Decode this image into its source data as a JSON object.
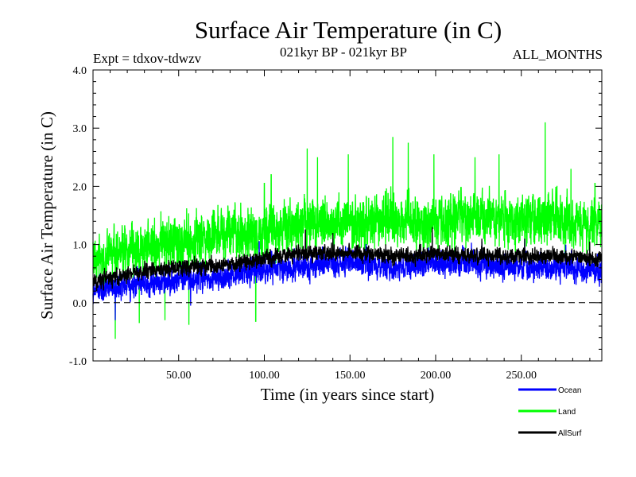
{
  "chart_data": {
    "type": "line",
    "title": "Surface Air Temperature (in C)",
    "subtitle_left": "Expt = tdxov-tdwzv",
    "subtitle_center": "021kyr BP - 021kyr BP",
    "subtitle_right": "ALL_MONTHS",
    "xlabel": "Time (in years since start)",
    "ylabel": "Surface Air Temperature (in C)",
    "xlim": [
      0,
      297
    ],
    "ylim": [
      -1.0,
      4.0
    ],
    "x_ticks": [
      50,
      100,
      150,
      200,
      250
    ],
    "x_tick_labels": [
      "50.00",
      "100.00",
      "150.00",
      "200.00",
      "250.00"
    ],
    "y_ticks": [
      -1.0,
      0.0,
      1.0,
      2.0,
      3.0,
      4.0
    ],
    "y_tick_labels": [
      "-1.0",
      "0.0",
      "1.0",
      "2.0",
      "3.0",
      "4.0"
    ],
    "reference_line": 0.0,
    "legend_position": "bottom-right",
    "x_step": 0.0833,
    "series": [
      {
        "name": "Land",
        "color": "#00ff00",
        "anchors_x": [
          0,
          15,
          30,
          50,
          75,
          100,
          125,
          150,
          175,
          200,
          225,
          250,
          275,
          297
        ],
        "anchors_y": [
          0.75,
          0.85,
          0.95,
          1.05,
          1.15,
          1.25,
          1.35,
          1.35,
          1.45,
          1.35,
          1.45,
          1.4,
          1.4,
          1.35
        ],
        "noise": 0.38,
        "peaks": [
          [
            13,
            -0.62
          ],
          [
            27,
            -0.35
          ],
          [
            42,
            -0.3
          ],
          [
            56,
            -0.38
          ],
          [
            95,
            -0.32
          ],
          [
            100,
            2.05
          ],
          [
            104,
            2.2
          ],
          [
            125,
            2.65
          ],
          [
            131,
            2.5
          ],
          [
            149,
            2.55
          ],
          [
            175,
            2.85
          ],
          [
            184,
            2.75
          ],
          [
            199,
            2.55
          ],
          [
            223,
            2.5
          ],
          [
            237,
            2.55
          ],
          [
            264,
            3.1
          ],
          [
            279,
            2.3
          ],
          [
            293,
            2.05
          ]
        ]
      },
      {
        "name": "Ocean",
        "color": "#0000ff",
        "anchors_x": [
          0,
          15,
          30,
          50,
          75,
          100,
          125,
          150,
          175,
          200,
          225,
          250,
          275,
          297
        ],
        "anchors_y": [
          0.2,
          0.3,
          0.35,
          0.4,
          0.45,
          0.55,
          0.65,
          0.7,
          0.6,
          0.7,
          0.65,
          0.6,
          0.6,
          0.55
        ],
        "noise": 0.2,
        "peaks": [
          [
            13,
            -0.3
          ],
          [
            57,
            -0.05
          ],
          [
            97,
            1.05
          ],
          [
            124,
            1.05
          ],
          [
            140,
            1.1
          ],
          [
            198,
            1.2
          ],
          [
            227,
            1.05
          ],
          [
            252,
            1.1
          ],
          [
            276,
            1.0
          ],
          [
            290,
            0.95
          ]
        ]
      },
      {
        "name": "AllSurf",
        "color": "#000000",
        "anchors_x": [
          0,
          15,
          30,
          50,
          75,
          100,
          125,
          150,
          175,
          200,
          225,
          250,
          275,
          297
        ],
        "anchors_y": [
          0.35,
          0.45,
          0.55,
          0.6,
          0.65,
          0.75,
          0.85,
          0.85,
          0.8,
          0.85,
          0.8,
          0.8,
          0.8,
          0.75
        ],
        "noise": 0.12,
        "peaks": [
          [
            124,
            1.25
          ],
          [
            140,
            1.2
          ],
          [
            198,
            1.3
          ],
          [
            227,
            1.1
          ],
          [
            252,
            1.1
          ],
          [
            290,
            1.05
          ]
        ]
      }
    ]
  }
}
